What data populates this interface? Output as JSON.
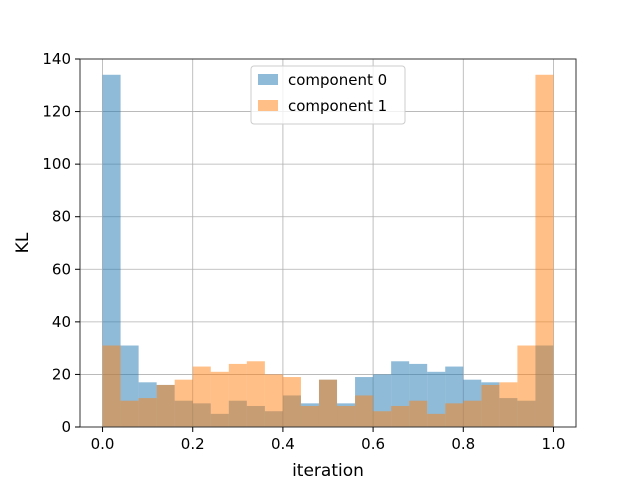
{
  "chart_data": {
    "type": "bar",
    "subtype": "overlapping-histogram",
    "title": "",
    "xlabel": "iteration",
    "ylabel": "KL",
    "xlim": [
      -0.05,
      1.05
    ],
    "ylim": [
      0,
      140
    ],
    "xticks": [
      0.0,
      0.2,
      0.4,
      0.6,
      0.8,
      1.0
    ],
    "xtick_labels": [
      "0.0",
      "0.2",
      "0.4",
      "0.6",
      "0.8",
      "1.0"
    ],
    "yticks": [
      0,
      20,
      40,
      60,
      80,
      100,
      120,
      140
    ],
    "ytick_labels": [
      "0",
      "20",
      "40",
      "60",
      "80",
      "100",
      "120",
      "140"
    ],
    "grid": true,
    "legend_position": "top-center",
    "bin_edges": [
      0.0,
      0.04,
      0.08,
      0.12,
      0.16,
      0.2,
      0.24,
      0.28,
      0.32,
      0.36,
      0.4,
      0.44,
      0.48,
      0.52,
      0.56,
      0.6,
      0.64,
      0.68,
      0.72,
      0.76,
      0.8,
      0.84,
      0.88,
      0.92,
      0.96,
      1.0
    ],
    "series": [
      {
        "name": "component 0",
        "color": "#1f77b4",
        "opacity": 0.5,
        "values": [
          134,
          31,
          17,
          16,
          10,
          9,
          5,
          10,
          8,
          6,
          12,
          9,
          18,
          9,
          19,
          20,
          25,
          24,
          21,
          23,
          18,
          17,
          11,
          10,
          31
        ]
      },
      {
        "name": "component 1",
        "color": "#ff7f0e",
        "opacity": 0.5,
        "values": [
          31,
          10,
          11,
          16,
          18,
          23,
          21,
          24,
          25,
          20,
          19,
          8,
          18,
          8,
          12,
          6,
          8,
          10,
          5,
          9,
          10,
          16,
          17,
          31,
          134
        ]
      }
    ]
  }
}
